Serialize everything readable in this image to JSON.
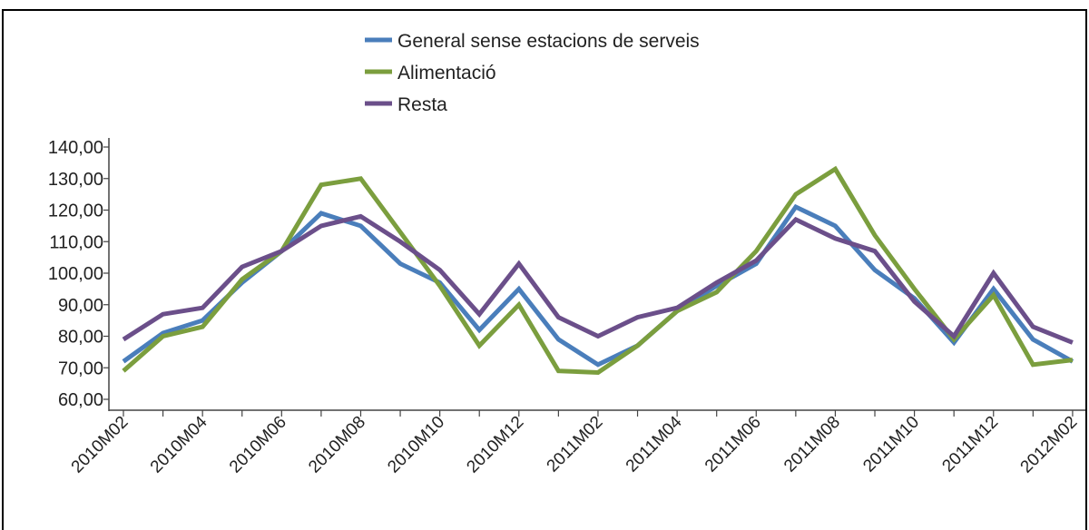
{
  "chart_data": {
    "type": "line",
    "title": "",
    "xlabel": "",
    "ylabel": "",
    "ylim": [
      60,
      140
    ],
    "y_ticks": [
      "60,00",
      "70,00",
      "80,00",
      "90,00",
      "100,00",
      "110,00",
      "120,00",
      "130,00",
      "140,00"
    ],
    "tick_labels": [
      "2010M02",
      "2010M04",
      "2010M06",
      "2010M08",
      "2010M10",
      "2010M12",
      "2011M02",
      "2011M04",
      "2011M06",
      "2011M08",
      "2011M10",
      "2011M12",
      "2012M02"
    ],
    "x": [
      "2010M02",
      "2010M03",
      "2010M04",
      "2010M05",
      "2010M06",
      "2010M07",
      "2010M08",
      "2010M09",
      "2010M10",
      "2010M11",
      "2010M12",
      "2011M01",
      "2011M02",
      "2011M03",
      "2011M04",
      "2011M05",
      "2011M06",
      "2011M07",
      "2011M08",
      "2011M09",
      "2011M10",
      "2011M11",
      "2011M12",
      "2012M01",
      "2012M02"
    ],
    "legend_position": "top-center",
    "grid": false,
    "series": [
      {
        "name": "General sense estacions de serveis",
        "color": "#4a7ebb",
        "values": [
          72,
          81,
          85,
          97,
          107,
          119,
          115,
          103,
          97,
          82,
          95,
          79,
          71,
          77,
          88,
          96,
          103,
          121,
          115,
          101,
          92,
          78,
          95,
          79,
          72
        ]
      },
      {
        "name": "Alimentació",
        "color": "#7b9e3e",
        "values": [
          69,
          80,
          83,
          98,
          107,
          128,
          130,
          113,
          96,
          77,
          90,
          69,
          68.5,
          77,
          88,
          94,
          107,
          125,
          133,
          112,
          95,
          79,
          93,
          71,
          72.5
        ]
      },
      {
        "name": "Resta",
        "color": "#6b4f8a",
        "values": [
          79,
          87,
          89,
          102,
          107,
          115,
          118,
          110,
          101,
          87,
          103,
          86,
          80,
          86,
          89,
          97,
          104,
          117,
          111,
          107,
          91,
          80,
          100,
          83,
          78
        ]
      }
    ]
  }
}
